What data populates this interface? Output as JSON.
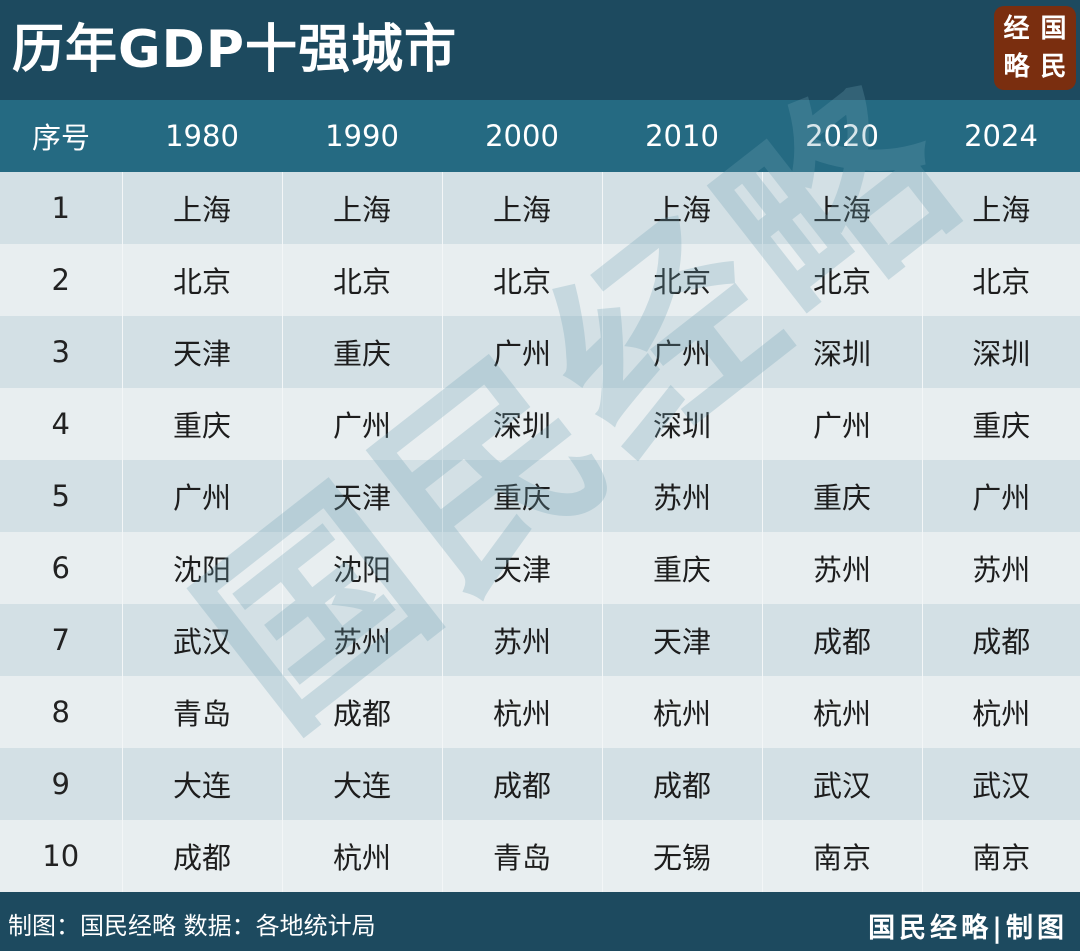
{
  "header": {
    "title": "历年GDP十强城市",
    "logo": [
      "经",
      "国",
      "略",
      "民"
    ]
  },
  "table": {
    "columns": [
      "序号",
      "1980",
      "1990",
      "2000",
      "2010",
      "2020",
      "2024"
    ],
    "rows": [
      [
        "1",
        "上海",
        "上海",
        "上海",
        "上海",
        "上海",
        "上海"
      ],
      [
        "2",
        "北京",
        "北京",
        "北京",
        "北京",
        "北京",
        "北京"
      ],
      [
        "3",
        "天津",
        "重庆",
        "广州",
        "广州",
        "深圳",
        "深圳"
      ],
      [
        "4",
        "重庆",
        "广州",
        "深圳",
        "深圳",
        "广州",
        "重庆"
      ],
      [
        "5",
        "广州",
        "天津",
        "重庆",
        "苏州",
        "重庆",
        "广州"
      ],
      [
        "6",
        "沈阳",
        "沈阳",
        "天津",
        "重庆",
        "苏州",
        "苏州"
      ],
      [
        "7",
        "武汉",
        "苏州",
        "苏州",
        "天津",
        "成都",
        "成都"
      ],
      [
        "8",
        "青岛",
        "成都",
        "杭州",
        "杭州",
        "杭州",
        "杭州"
      ],
      [
        "9",
        "大连",
        "大连",
        "成都",
        "成都",
        "武汉",
        "武汉"
      ],
      [
        "10",
        "成都",
        "杭州",
        "青岛",
        "无锡",
        "南京",
        "南京"
      ]
    ]
  },
  "watermark": "国民经略",
  "footer": {
    "source": "制图：国民经略  数据：各地统计局",
    "brand": "国民经略|制图"
  },
  "colors": {
    "header_bg": "#1d4a5f",
    "table_header_bg": "#256a82",
    "row_odd": "#d3e0e5",
    "row_even": "#e8eef0",
    "logo_bg": "#7a2e0f"
  }
}
